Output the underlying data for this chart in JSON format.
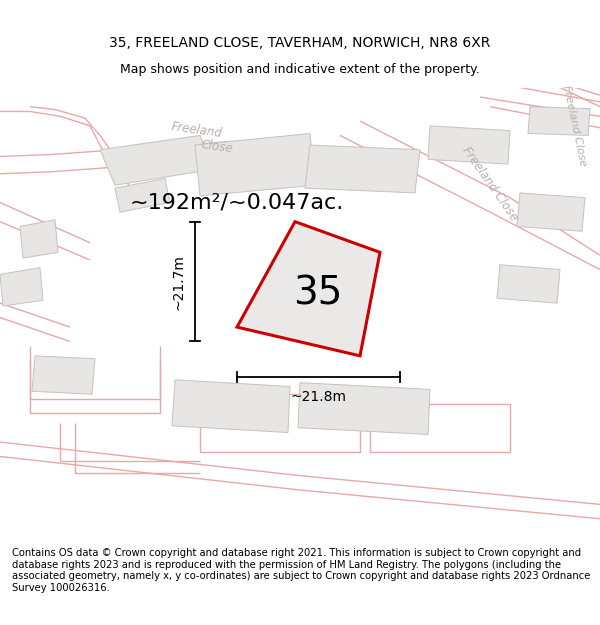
{
  "title_line1": "35, FREELAND CLOSE, TAVERHAM, NORWICH, NR8 6XR",
  "title_line2": "Map shows position and indicative extent of the property.",
  "footer_text": "Contains OS data © Crown copyright and database right 2021. This information is subject to Crown copyright and database rights 2023 and is reproduced with the permission of HM Land Registry. The polygons (including the associated geometry, namely x, y co-ordinates) are subject to Crown copyright and database rights 2023 Ordnance Survey 100026316.",
  "area_label": "~192m²/~0.047ac.",
  "number_label": "35",
  "dim_vertical": "~21.7m",
  "dim_horizontal": "~21.8m",
  "map_bg": "#ffffff",
  "plot_color_red": "#cc0000",
  "road_color": "#e8a8a8",
  "building_fill": "#e8e5e5",
  "building_edge": "#c8c0c0",
  "street_label_color": "#b8b0b0",
  "title_fontsize": 10,
  "subtitle_fontsize": 9,
  "footer_fontsize": 7.2,
  "area_fontsize": 16,
  "number_fontsize": 28,
  "dim_fontsize": 10
}
